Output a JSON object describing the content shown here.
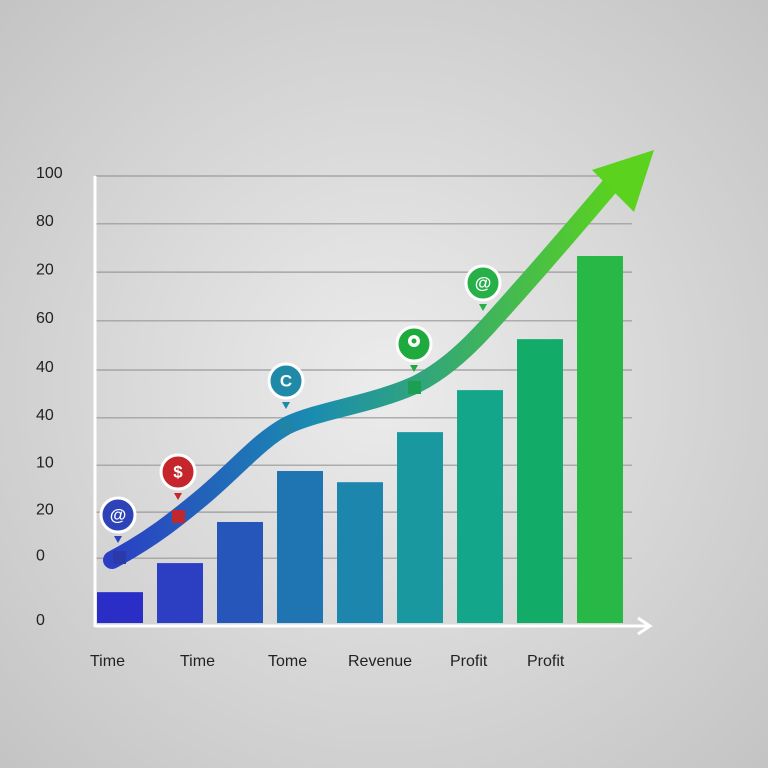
{
  "chart_data": {
    "type": "bar",
    "values": [
      6.9,
      13.4,
      22.6,
      34,
      31.5,
      42.7,
      52.1,
      63.5,
      82.1
    ],
    "colors": [
      "#2a2ec6",
      "#2c3ec2",
      "#2656ba",
      "#1f74b2",
      "#1d86ad",
      "#1a98a0",
      "#14a68a",
      "#12ab68",
      "#27b846"
    ],
    "x_labels": [
      "Time",
      "Time",
      "Tome",
      "Revenue",
      "Profit",
      "Profit"
    ],
    "icons": [
      "@",
      "$",
      "C",
      "@"
    ],
    "ylim": [
      0,
      100
    ],
    "yticks": [
      100,
      {
        "value": 89.3,
        "label": "80"
      },
      {
        "value": 78.5,
        "label": "20"
      },
      {
        "value": 67.6,
        "label": "60"
      },
      {
        "value": 56.6,
        "label": "40"
      },
      {
        "value": 45.9,
        "label": "40"
      },
      {
        "value": 35.3,
        "label": "10"
      },
      {
        "value": 24.8,
        "label": "20"
      },
      {
        "value": 14.5,
        "label": "0"
      },
      0
    ],
    "grid": true
  }
}
